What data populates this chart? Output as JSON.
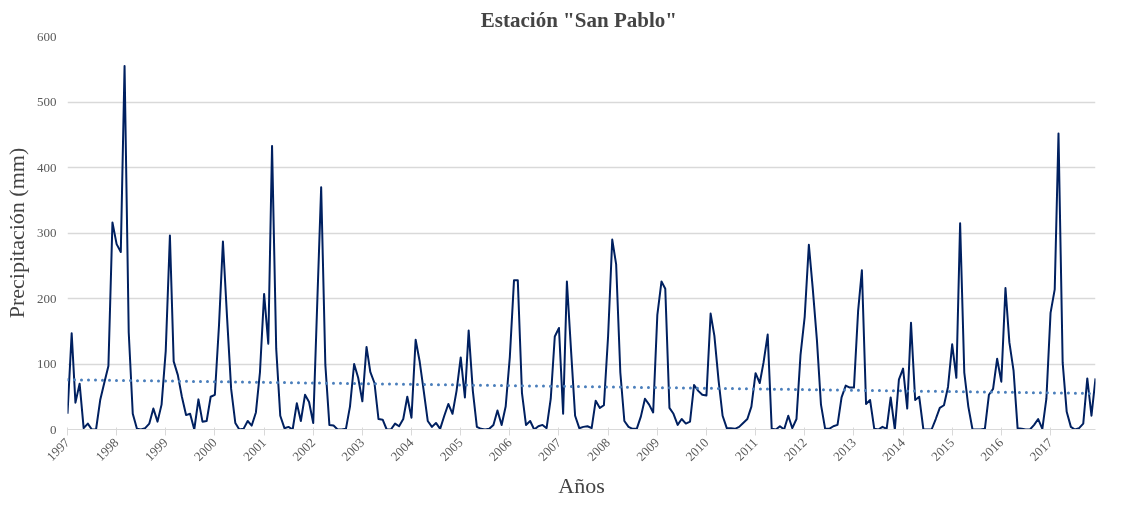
{
  "chart_data": {
    "type": "line",
    "title": "Estación  \"San Pablo\"",
    "xlabel": "Años",
    "ylabel": "Precipitación (mm)",
    "x": [
      "1997-01",
      "1997-02",
      "1997-03",
      "1997-04",
      "1997-05",
      "1997-06",
      "1997-07",
      "1997-08",
      "1997-09",
      "1997-10",
      "1997-11",
      "1997-12",
      "1998-01",
      "1998-02",
      "1998-03",
      "1998-04",
      "1998-05",
      "1998-06",
      "1998-07",
      "1998-08",
      "1998-09",
      "1998-10",
      "1998-11",
      "1998-12",
      "1999-01",
      "1999-02",
      "1999-03",
      "1999-04",
      "1999-05",
      "1999-06",
      "1999-07",
      "1999-08",
      "1999-09",
      "1999-10",
      "1999-11",
      "1999-12",
      "2000-01",
      "2000-02",
      "2000-03",
      "2000-04",
      "2000-05",
      "2000-06",
      "2000-07",
      "2000-08",
      "2000-09",
      "2000-10",
      "2000-11",
      "2000-12",
      "2001-01",
      "2001-02",
      "2001-03",
      "2001-04",
      "2001-05",
      "2001-06",
      "2001-07",
      "2001-08",
      "2001-09",
      "2001-10",
      "2001-11",
      "2001-12",
      "2002-01",
      "2002-02",
      "2002-03",
      "2002-04",
      "2002-05",
      "2002-06",
      "2002-07",
      "2002-08",
      "2002-09",
      "2002-10",
      "2002-11",
      "2002-12",
      "2003-01",
      "2003-02",
      "2003-03",
      "2003-04",
      "2003-05",
      "2003-06",
      "2003-07",
      "2003-08",
      "2003-09",
      "2003-10",
      "2003-11",
      "2003-12",
      "2004-01",
      "2004-02",
      "2004-03",
      "2004-04",
      "2004-05",
      "2004-06",
      "2004-07",
      "2004-08",
      "2004-09",
      "2004-10",
      "2004-11",
      "2004-12",
      "2005-01",
      "2005-02",
      "2005-03",
      "2005-04",
      "2005-05",
      "2005-06",
      "2005-07",
      "2005-08",
      "2005-09",
      "2005-10",
      "2005-11",
      "2005-12",
      "2006-01",
      "2006-02",
      "2006-03",
      "2006-04",
      "2006-05",
      "2006-06",
      "2006-07",
      "2006-08",
      "2006-09",
      "2006-10",
      "2006-11",
      "2006-12",
      "2007-01",
      "2007-02",
      "2007-03",
      "2007-04",
      "2007-05",
      "2007-06",
      "2007-07",
      "2007-08",
      "2007-09",
      "2007-10",
      "2007-11",
      "2007-12",
      "2008-01",
      "2008-02",
      "2008-03",
      "2008-04",
      "2008-05",
      "2008-06",
      "2008-07",
      "2008-08",
      "2008-09",
      "2008-10",
      "2008-11",
      "2008-12",
      "2009-01",
      "2009-02",
      "2009-03",
      "2009-04",
      "2009-05",
      "2009-06",
      "2009-07",
      "2009-08",
      "2009-09",
      "2009-10",
      "2009-11",
      "2009-12",
      "2010-01",
      "2010-02",
      "2010-03",
      "2010-04",
      "2010-05",
      "2010-06",
      "2010-07",
      "2010-08",
      "2010-09",
      "2010-10",
      "2010-11",
      "2010-12",
      "2011-01",
      "2011-02",
      "2011-03",
      "2011-04",
      "2011-05",
      "2011-06",
      "2011-07",
      "2011-08",
      "2011-09",
      "2011-10",
      "2011-11",
      "2011-12",
      "2012-01",
      "2012-02",
      "2012-03",
      "2012-04",
      "2012-05",
      "2012-06",
      "2012-07",
      "2012-08",
      "2012-09",
      "2012-10",
      "2012-11",
      "2012-12",
      "2013-01",
      "2013-02",
      "2013-03",
      "2013-04",
      "2013-05",
      "2013-06",
      "2013-07",
      "2013-08",
      "2013-09",
      "2013-10",
      "2013-11",
      "2013-12",
      "2014-01",
      "2014-02",
      "2014-03",
      "2014-04",
      "2014-05",
      "2014-06",
      "2014-07",
      "2014-08",
      "2014-09",
      "2014-10",
      "2014-11",
      "2014-12",
      "2015-01",
      "2015-02",
      "2015-03",
      "2015-04",
      "2015-05",
      "2015-06",
      "2015-07",
      "2015-08",
      "2015-09",
      "2015-10",
      "2015-11",
      "2015-12",
      "2016-01",
      "2016-02",
      "2016-03",
      "2016-04",
      "2016-05",
      "2016-06",
      "2016-07",
      "2016-08",
      "2016-09",
      "2016-10",
      "2016-11",
      "2016-12",
      "2017-01",
      "2017-02",
      "2017-03",
      "2017-04",
      "2017-05",
      "2017-06",
      "2017-07",
      "2017-08",
      "2017-09",
      "2017-10",
      "2017-11",
      "2017-12"
    ],
    "series": [
      {
        "color": "#002060",
        "line_style": "solid",
        "values": [
          24,
          147,
          41,
          70,
          2,
          9,
          0,
          0,
          45,
          71,
          97,
          316,
          283,
          271,
          555,
          148,
          24,
          1,
          0,
          2,
          9,
          32,
          12,
          38,
          120,
          296,
          104,
          83,
          50,
          22,
          24,
          0,
          46,
          12,
          13,
          50,
          53,
          160,
          287,
          170,
          62,
          10,
          0,
          1,
          13,
          6,
          26,
          87,
          207,
          131,
          433,
          123,
          21,
          2,
          4,
          0,
          40,
          13,
          53,
          42,
          10,
          200,
          370,
          99,
          7,
          6,
          0,
          0,
          1,
          35,
          100,
          79,
          43,
          126,
          88,
          71,
          16,
          15,
          0,
          0,
          9,
          5,
          16,
          50,
          18,
          137,
          105,
          59,
          13,
          4,
          10,
          1,
          21,
          39,
          24,
          59,
          110,
          49,
          151,
          59,
          4,
          1,
          0,
          1,
          7,
          29,
          7,
          35,
          111,
          228,
          228,
          56,
          7,
          13,
          0,
          5,
          7,
          2,
          47,
          142,
          155,
          24,
          226,
          120,
          21,
          2,
          4,
          5,
          2,
          44,
          33,
          37,
          142,
          290,
          252,
          87,
          13,
          4,
          1,
          1,
          20,
          47,
          38,
          26,
          175,
          226,
          215,
          33,
          24,
          7,
          16,
          9,
          12,
          68,
          59,
          53,
          52,
          177,
          143,
          75,
          21,
          2,
          2,
          1,
          4,
          10,
          16,
          35,
          86,
          71,
          102,
          145,
          1,
          0,
          5,
          0,
          21,
          2,
          16,
          114,
          172,
          282,
          215,
          136,
          38,
          1,
          1,
          5,
          7,
          49,
          67,
          64,
          64,
          181,
          243,
          39,
          45,
          1,
          0,
          4,
          1,
          49,
          0,
          76,
          93,
          32,
          163,
          45,
          50,
          0,
          0,
          0,
          16,
          33,
          37,
          65,
          130,
          79,
          315,
          87,
          35,
          0,
          0,
          0,
          1,
          53,
          62,
          108,
          73,
          216,
          133,
          90,
          2,
          1,
          0,
          0,
          7,
          16,
          1,
          47,
          178,
          214,
          452,
          102,
          27,
          4,
          0,
          2,
          9,
          78,
          21,
          78
        ]
      },
      {
        "type": "line",
        "color": "#4a7ebb",
        "line_style": "dotted",
        "x": [
          "1997-01",
          "2017-12"
        ],
        "values": [
          76,
          55
        ]
      }
    ],
    "xlim": [
      "1997-01",
      "2017-12"
    ],
    "xticks": [
      {
        "value": "1997-01",
        "label": "1997"
      },
      {
        "value": "1998-01",
        "label": "1998"
      },
      {
        "value": "1999-01",
        "label": "1999"
      },
      {
        "value": "2000-01",
        "label": "2000"
      },
      {
        "value": "2001-01",
        "label": "2001"
      },
      {
        "value": "2002-01",
        "label": "2002"
      },
      {
        "value": "2003-01",
        "label": "2003"
      },
      {
        "value": "2004-01",
        "label": "2004"
      },
      {
        "value": "2005-01",
        "label": "2005"
      },
      {
        "value": "2006-01",
        "label": "2006"
      },
      {
        "value": "2007-01",
        "label": "2007"
      },
      {
        "value": "2008-01",
        "label": "2008"
      },
      {
        "value": "2009-01",
        "label": "2009"
      },
      {
        "value": "2010-01",
        "label": "2010"
      },
      {
        "value": "2011-01",
        "label": "2011"
      },
      {
        "value": "2012-01",
        "label": "2012"
      },
      {
        "value": "2013-01",
        "label": "2013"
      },
      {
        "value": "2014-01",
        "label": "2014"
      },
      {
        "value": "2015-01",
        "label": "2015"
      },
      {
        "value": "2016-01",
        "label": "2016"
      },
      {
        "value": "2017-01",
        "label": "2017"
      }
    ],
    "ylim": [
      0,
      600
    ],
    "yticks": [
      0,
      100,
      200,
      300,
      400,
      500,
      600
    ],
    "grid": "y",
    "marker": "none"
  }
}
